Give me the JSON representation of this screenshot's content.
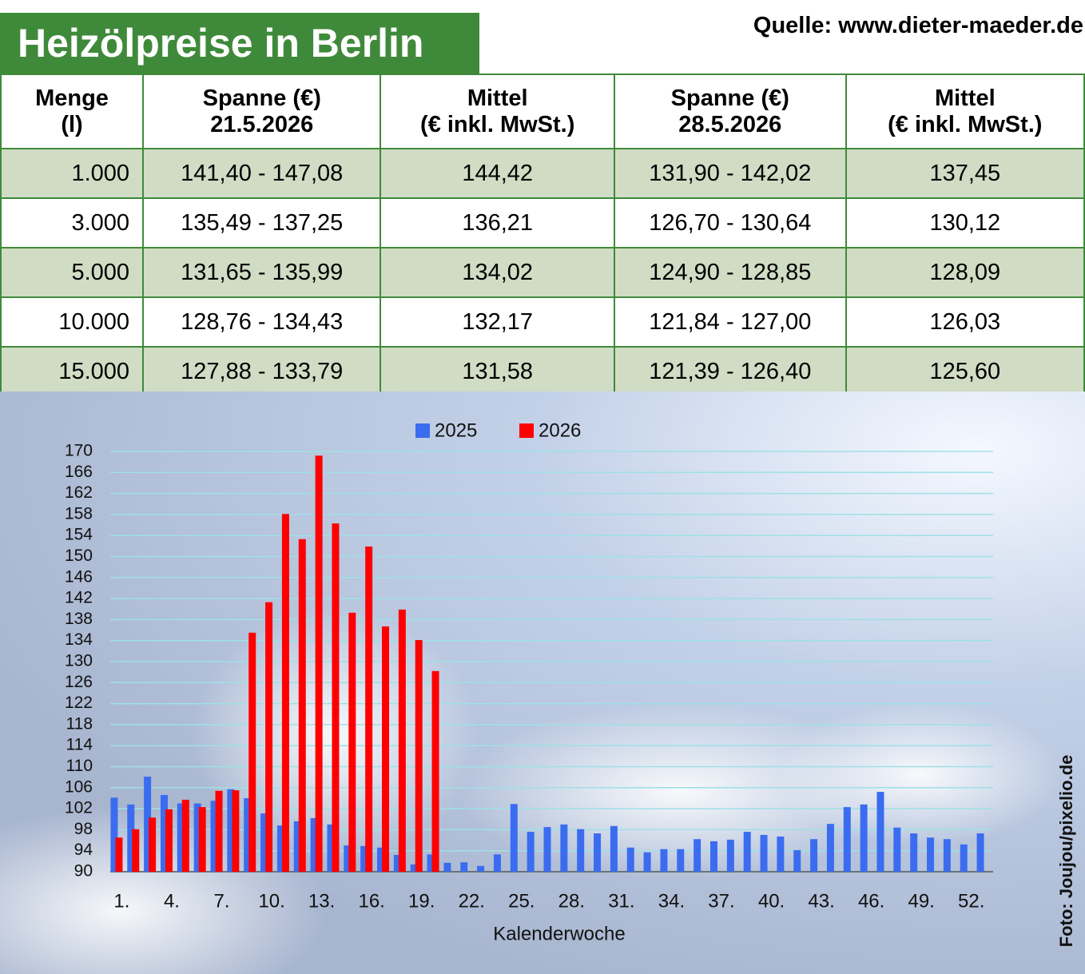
{
  "header": {
    "title": "Heizölpreise in Berlin",
    "source": "Quelle: www.dieter-maeder.de"
  },
  "table": {
    "columns": [
      [
        "Menge",
        "(l)"
      ],
      [
        "Spanne (€)",
        "21.5.2026"
      ],
      [
        "Mittel",
        "(€ inkl. MwSt.)"
      ],
      [
        "Spanne (€)",
        "28.5.2026"
      ],
      [
        "Mittel",
        "(€ inkl. MwSt.)"
      ]
    ],
    "rows": [
      [
        "1.000",
        "141,40 - 147,08",
        "144,42",
        "131,90 - 142,02",
        "137,45"
      ],
      [
        "3.000",
        "135,49 - 137,25",
        "136,21",
        "126,70 - 130,64",
        "130,12"
      ],
      [
        "5.000",
        "131,65 - 135,99",
        "134,02",
        "124,90 - 128,85",
        "128,09"
      ],
      [
        "10.000",
        "128,76 - 134,43",
        "132,17",
        "121,84 - 127,00",
        "126,03"
      ],
      [
        "15.000",
        "127,88 - 133,79",
        "131,58",
        "121,39 - 126,40",
        "125,60"
      ]
    ]
  },
  "chart_data": {
    "type": "bar",
    "x_label": "Kalenderwoche",
    "categories": [
      "1.",
      null,
      null,
      "4.",
      null,
      null,
      "7.",
      null,
      null,
      "10.",
      null,
      null,
      "13.",
      null,
      null,
      "16.",
      null,
      null,
      "19.",
      null,
      null,
      "22.",
      null,
      null,
      "25.",
      null,
      null,
      "28.",
      null,
      null,
      "31.",
      null,
      null,
      "34.",
      null,
      null,
      "37.",
      null,
      null,
      "40.",
      null,
      null,
      "43.",
      null,
      null,
      "46.",
      null,
      null,
      "49.",
      null,
      null,
      "52.",
      null
    ],
    "series": [
      {
        "name": "2025",
        "color": "#3b6cf0",
        "values": [
          104.1,
          102.8,
          108.1,
          104.6,
          103,
          103,
          103.5,
          105.7,
          104,
          101.1,
          98.8,
          99.6,
          100.2,
          99,
          95,
          94.9,
          94.6,
          93.2,
          91.4,
          93.3,
          91.7,
          91.8,
          91.1,
          93.3,
          102.9,
          97.6,
          98.5,
          99,
          98.1,
          97.3,
          98.7,
          94.6,
          93.7,
          94.3,
          94.3,
          96.2,
          95.8,
          96.1,
          97.6,
          97,
          96.7,
          94.1,
          96.2,
          99.1,
          102.3,
          102.8,
          105.2,
          98.4,
          97.3,
          96.5,
          96.2,
          95.2,
          97.3
        ]
      },
      {
        "name": "2026",
        "color": "#ff0000",
        "values": [
          96.5,
          98.1,
          100.3,
          101.9,
          103.7,
          102.3,
          105.4,
          105.5,
          135.5,
          141.3,
          158.1,
          153.3,
          169.2,
          156.3,
          139.3,
          151.9,
          136.7,
          139.9,
          134.1,
          128.2,
          null,
          null,
          null,
          null,
          null,
          null,
          null,
          null,
          null,
          null,
          null,
          null,
          null,
          null,
          null,
          null,
          null,
          null,
          null,
          null,
          null,
          null,
          null,
          null,
          null,
          null,
          null,
          null,
          null,
          null,
          null,
          null,
          null
        ]
      }
    ],
    "ylim": [
      90,
      170
    ],
    "yticks": [
      90,
      94,
      98,
      102,
      106,
      110,
      114,
      118,
      122,
      126,
      130,
      134,
      138,
      142,
      146,
      150,
      154,
      158,
      162,
      166,
      170
    ],
    "grid": true
  },
  "photo_credit": "Foto: Joujou/pixelio.de"
}
